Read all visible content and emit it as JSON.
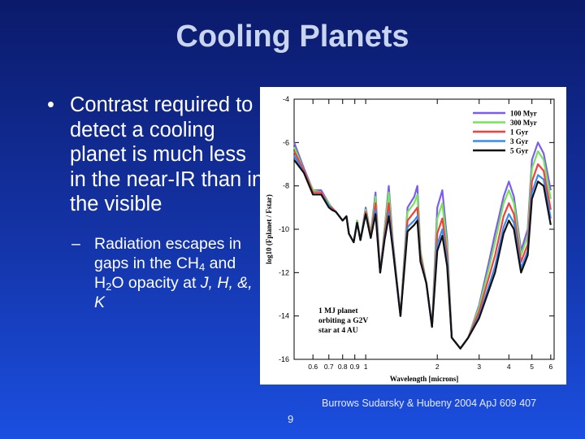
{
  "slide": {
    "title": "Cooling Planets",
    "bullet": "Contrast required to detect a cooling planet is much less in the near-IR than in the visible",
    "sub_bullet": {
      "prefix": "Radiation escapes in gaps in the CH",
      "sub1": "4",
      "mid": " and H",
      "sub2": "2",
      "suffix": "O opacity at ",
      "bands": "J, H, &,  K"
    },
    "credit": "Burrows Sudarsky & Hubeny 2004 ApJ 609 407",
    "page_number": "9"
  },
  "chart_data": {
    "type": "line",
    "xlabel": "Wavelength   [microns]",
    "ylabel": "log10 (Fplanet / Fstar)",
    "x_scale": "log",
    "xlim": [
      0.5,
      6.2
    ],
    "ylim": [
      -16,
      -4
    ],
    "x_ticks": [
      "0.6",
      "0.7",
      "0.8",
      "0.9",
      "1",
      "2",
      "3",
      "4",
      "5",
      "6"
    ],
    "y_ticks": [
      "-4",
      "-6",
      "-8",
      "-10",
      "-12",
      "-14",
      "-16"
    ],
    "annotation": [
      "1 MJ planet",
      "orbiting a G2V",
      "star at 4 AU"
    ],
    "legend_position": "top-right",
    "x": [
      0.5,
      0.55,
      0.6,
      0.65,
      0.7,
      0.72,
      0.75,
      0.8,
      0.83,
      0.85,
      0.89,
      0.92,
      0.95,
      1.0,
      1.05,
      1.1,
      1.15,
      1.2,
      1.25,
      1.3,
      1.4,
      1.5,
      1.6,
      1.65,
      1.7,
      1.8,
      1.9,
      2.0,
      2.1,
      2.2,
      2.3,
      2.5,
      2.7,
      3.0,
      3.3,
      3.5,
      3.8,
      4.0,
      4.2,
      4.5,
      4.8,
      5.0,
      5.3,
      5.6,
      6.0
    ],
    "series": [
      {
        "name": "100 Myr",
        "color": "#7a5cf0",
        "values": [
          -6.0,
          -7.2,
          -8.2,
          -8.2,
          -8.8,
          -9.0,
          -9.2,
          -9.6,
          -9.4,
          -10.2,
          -10.6,
          -9.6,
          -10.5,
          -9.0,
          -10.2,
          -8.3,
          -12.0,
          -10.0,
          -8.0,
          -10.5,
          -14.0,
          -9.0,
          -8.5,
          -8.0,
          -11.0,
          -12.5,
          -14.5,
          -9.0,
          -8.2,
          -10.5,
          -15.0,
          -15.5,
          -15.0,
          -13.5,
          -11.5,
          -10.2,
          -8.5,
          -7.8,
          -8.5,
          -11.0,
          -10.0,
          -6.8,
          -6.0,
          -6.5,
          -8.2
        ]
      },
      {
        "name": "300 Myr",
        "color": "#77e35a",
        "values": [
          -6.2,
          -7.3,
          -8.2,
          -8.3,
          -8.8,
          -9.0,
          -9.2,
          -9.6,
          -9.4,
          -10.2,
          -10.6,
          -9.6,
          -10.5,
          -9.1,
          -10.2,
          -8.5,
          -12.0,
          -10.0,
          -8.3,
          -10.6,
          -14.0,
          -9.2,
          -8.8,
          -8.4,
          -11.0,
          -12.5,
          -14.5,
          -9.5,
          -8.8,
          -10.8,
          -15.0,
          -15.5,
          -15.0,
          -13.6,
          -11.8,
          -10.6,
          -8.8,
          -8.2,
          -8.8,
          -11.2,
          -10.3,
          -7.2,
          -6.4,
          -6.8,
          -8.6
        ]
      },
      {
        "name": "1 Gyr",
        "color": "#f04040",
        "values": [
          -6.4,
          -7.3,
          -8.3,
          -8.3,
          -8.9,
          -9.0,
          -9.2,
          -9.6,
          -9.4,
          -10.2,
          -10.6,
          -9.7,
          -10.5,
          -9.2,
          -10.3,
          -8.8,
          -12.0,
          -10.2,
          -8.8,
          -10.7,
          -14.0,
          -9.6,
          -9.2,
          -9.0,
          -11.2,
          -12.5,
          -14.5,
          -10.2,
          -9.5,
          -11.2,
          -15.0,
          -15.5,
          -15.0,
          -13.8,
          -12.2,
          -11.2,
          -9.4,
          -8.8,
          -9.3,
          -11.5,
          -10.7,
          -7.8,
          -7.0,
          -7.3,
          -9.1
        ]
      },
      {
        "name": "3 Gyr",
        "color": "#3a8af0",
        "values": [
          -6.6,
          -7.4,
          -8.4,
          -8.4,
          -8.9,
          -9.1,
          -9.2,
          -9.6,
          -9.4,
          -10.2,
          -10.6,
          -9.7,
          -10.5,
          -9.3,
          -10.4,
          -9.1,
          -12.0,
          -10.4,
          -9.2,
          -10.8,
          -14.0,
          -9.9,
          -9.6,
          -9.4,
          -11.4,
          -12.5,
          -14.5,
          -10.7,
          -10.0,
          -11.5,
          -15.0,
          -15.5,
          -15.0,
          -14.0,
          -12.6,
          -11.7,
          -9.9,
          -9.3,
          -9.7,
          -11.8,
          -11.0,
          -8.3,
          -7.5,
          -7.7,
          -9.5
        ]
      },
      {
        "name": "5 Gyr",
        "color": "#111111",
        "values": [
          -6.8,
          -7.4,
          -8.4,
          -8.4,
          -9.0,
          -9.1,
          -9.2,
          -9.6,
          -9.4,
          -10.2,
          -10.6,
          -9.7,
          -10.5,
          -9.3,
          -10.4,
          -9.3,
          -12.0,
          -10.5,
          -9.4,
          -10.9,
          -14.0,
          -10.1,
          -9.8,
          -9.6,
          -11.5,
          -12.5,
          -14.5,
          -11.0,
          -10.3,
          -11.7,
          -15.0,
          -15.5,
          -15.0,
          -14.1,
          -12.8,
          -12.0,
          -10.2,
          -9.6,
          -10.0,
          -12.0,
          -11.2,
          -8.6,
          -7.8,
          -8.0,
          -9.8
        ]
      }
    ]
  }
}
